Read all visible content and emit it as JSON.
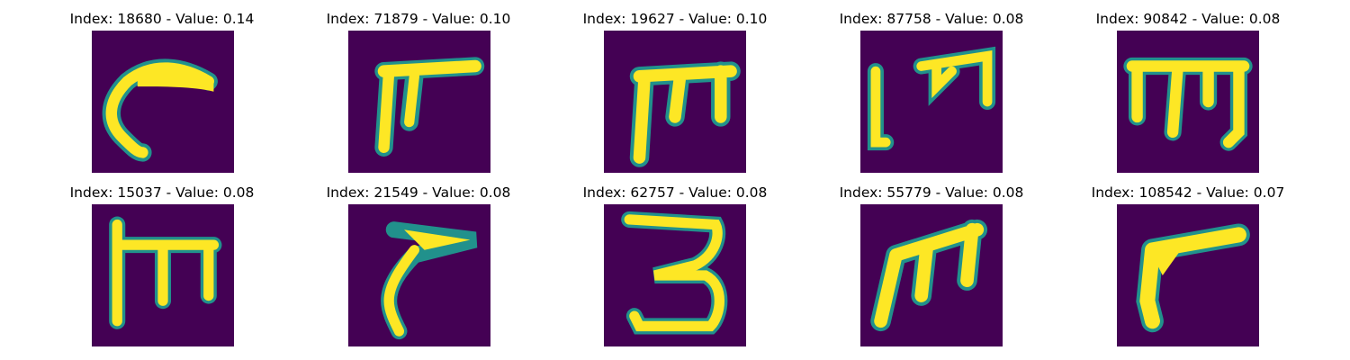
{
  "colormap": {
    "background": "#440154",
    "low": "#3b528b",
    "mid": "#21918c",
    "high": "#5ec962",
    "top": "#fde725"
  },
  "panels": [
    {
      "title": "Index: 18680 - Value: 0.14",
      "glyph": "curl-c-icon"
    },
    {
      "title": "Index: 71879 - Value: 0.10",
      "glyph": "pi-like-icon"
    },
    {
      "title": "Index: 19627 - Value: 0.10",
      "glyph": "m-shape-icon"
    },
    {
      "title": "Index: 87758 - Value: 0.08",
      "glyph": "open-m-icon"
    },
    {
      "title": "Index: 90842 - Value: 0.08",
      "glyph": "m-bar-icon"
    },
    {
      "title": "Index: 15037 - Value: 0.08",
      "glyph": "tall-m-icon"
    },
    {
      "title": "Index: 21549 - Value: 0.08",
      "glyph": "hook-icon"
    },
    {
      "title": "Index: 62757 - Value: 0.08",
      "glyph": "three-icon"
    },
    {
      "title": "Index: 55779 - Value: 0.08",
      "glyph": "slant-m-icon"
    },
    {
      "title": "Index: 108542 - Value: 0.07",
      "glyph": "r-like-icon"
    }
  ]
}
